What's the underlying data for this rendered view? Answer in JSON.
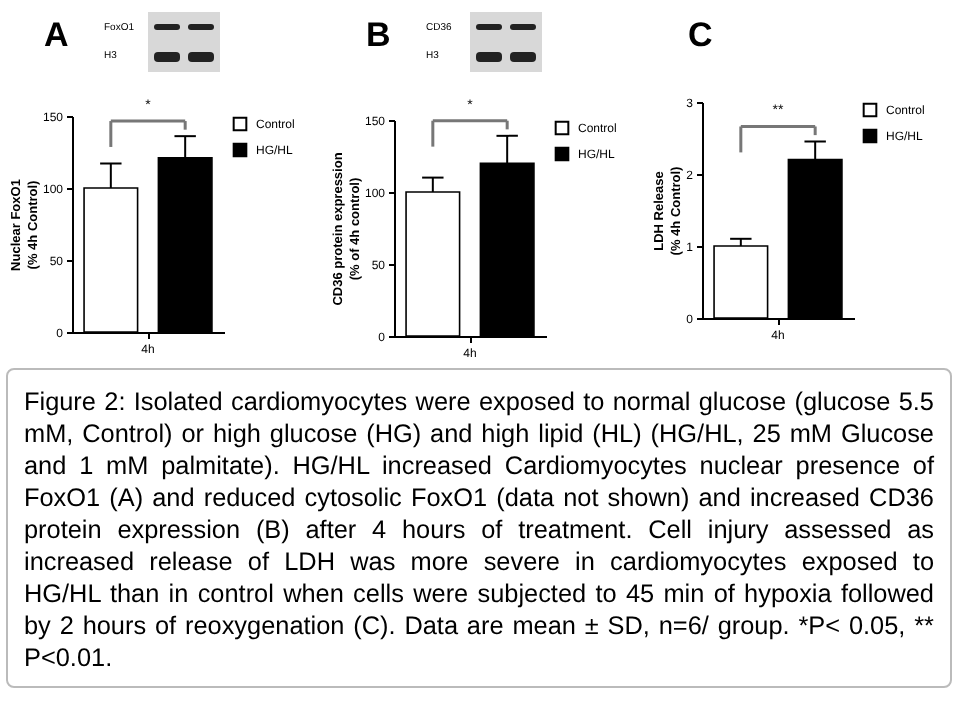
{
  "chart_data": [
    {
      "type": "bar",
      "title": "A",
      "categories": [
        "4h"
      ],
      "ylabel": "Nuclear FoxO1\n(% 4h Control)",
      "ylim": [
        0,
        150
      ],
      "yticks": [
        0,
        50,
        100,
        150
      ],
      "legend": "top right",
      "annotations": [
        "*",
        "FoxO1",
        "H3"
      ],
      "series": [
        {
          "name": "Control",
          "color": "#ffffff",
          "values": [
            100
          ],
          "errors": [
            17
          ]
        },
        {
          "name": "HG/HL",
          "color": "#000000",
          "values": [
            121
          ],
          "errors": [
            15
          ]
        }
      ]
    },
    {
      "type": "bar",
      "title": "B",
      "categories": [
        "4h"
      ],
      "ylabel": "CD36 protein expression\n(% of 4h control)",
      "ylim": [
        0,
        150
      ],
      "yticks": [
        0,
        50,
        100,
        150
      ],
      "legend": "top right",
      "annotations": [
        "*",
        "CD36",
        "H3"
      ],
      "series": [
        {
          "name": "Control",
          "color": "#ffffff",
          "values": [
            100
          ],
          "errors": [
            10
          ]
        },
        {
          "name": "HG/HL",
          "color": "#000000",
          "values": [
            120
          ],
          "errors": [
            19
          ]
        }
      ]
    },
    {
      "type": "bar",
      "title": "C",
      "categories": [
        "4h"
      ],
      "ylabel": "LDH Release\n(% 4h Control)",
      "ylim": [
        0,
        3
      ],
      "yticks": [
        0,
        1,
        2,
        3
      ],
      "legend": "top right",
      "annotations": [
        "**"
      ],
      "series": [
        {
          "name": "Control",
          "color": "#ffffff",
          "values": [
            1.0
          ],
          "errors": [
            0.1
          ]
        },
        {
          "name": "HG/HL",
          "color": "#000000",
          "values": [
            2.2
          ],
          "errors": [
            0.25
          ]
        }
      ]
    },
    {
      "type": "other",
      "annotations": [
        "Figure 2: Isolated cardiomyocytes were exposed to normal glucose (glucose 5.5 mM, Control) or high glucose (HG) and high lipid (HL) (HG/HL, 25 mM Glucose and 1 mM palmitate). HG/HL increased Cardiomyocytes nuclear presence of FoxO1 (A) and reduced cytosolic FoxO1 (data not shown) and increased CD36 protein expression (B) after 4 hours of treatment. Cell injury assessed as increased release of LDH was more severe in cardiomyocytes exposed to HG/HL than in control when cells were subjected to 45 min of hypoxia followed by 2 hours of reoxygenation (C). Data are mean ± SD, n=6/ group. *P< 0.05, ** P<0.01."
      ]
    }
  ]
}
